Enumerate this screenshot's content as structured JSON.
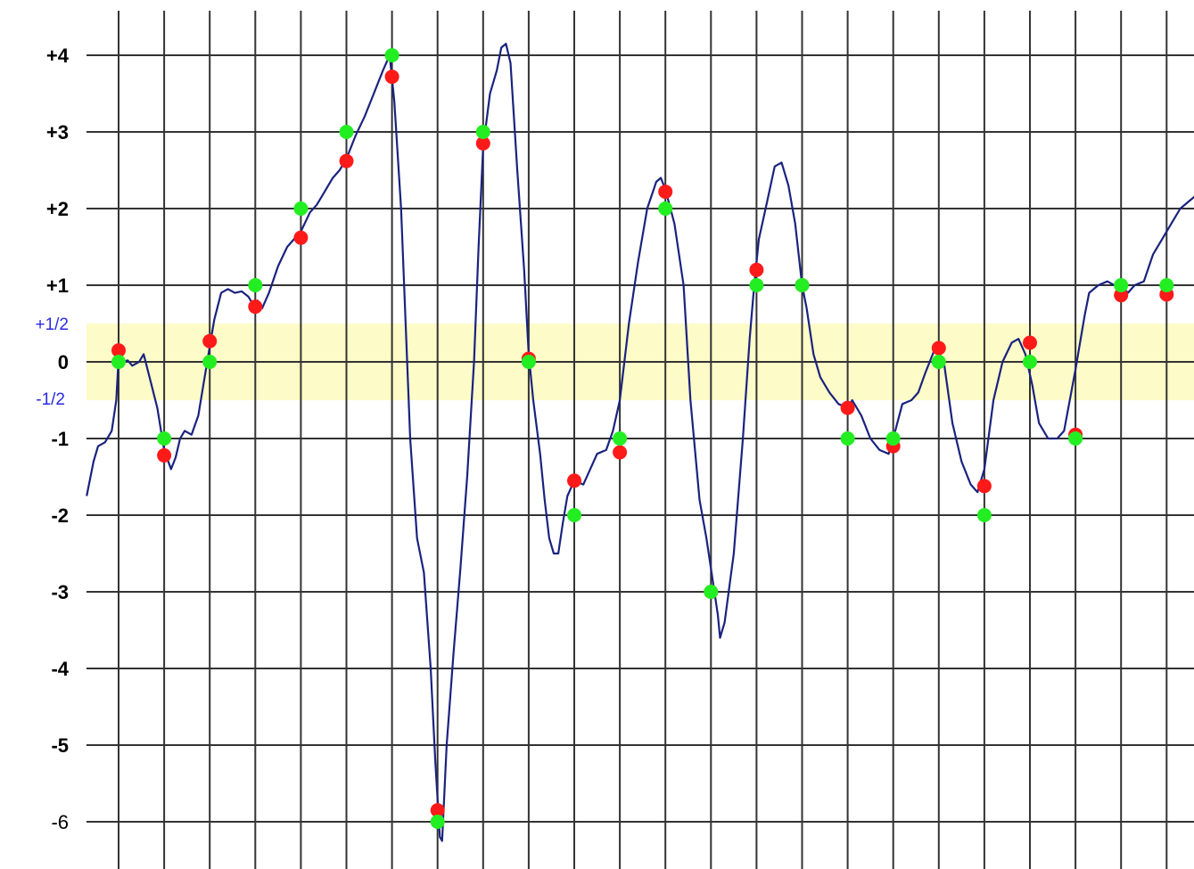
{
  "chart_data": {
    "type": "line",
    "title": "",
    "xlabel": "",
    "ylabel": "",
    "ylim": [
      -6.6,
      4.6
    ],
    "xlim": [
      -0.7,
      23.7
    ],
    "grid": true,
    "y_ticks": [
      {
        "value": 4,
        "label": "+4"
      },
      {
        "value": 3,
        "label": "+3"
      },
      {
        "value": 2,
        "label": "+2"
      },
      {
        "value": 1,
        "label": "+1"
      },
      {
        "value": 0,
        "label": "0"
      },
      {
        "value": -1,
        "label": "-1"
      },
      {
        "value": -2,
        "label": "-2"
      },
      {
        "value": -3,
        "label": "-3"
      },
      {
        "value": -4,
        "label": "-4"
      },
      {
        "value": -5,
        "label": "-5"
      },
      {
        "value": -6,
        "label": "-6"
      }
    ],
    "band": {
      "from": -0.5,
      "to": 0.5,
      "color": "#fdfbc8",
      "upper_label": "+1/2",
      "lower_label": "-1/2"
    },
    "colors": {
      "line": "#1a237e",
      "sample": "#ff1a1a",
      "quantized": "#22ee22",
      "grid": "#333333"
    },
    "vertical_gridlines": 24,
    "series": [
      {
        "kind": "continuous",
        "points": [
          [
            -0.7,
            -1.75
          ],
          [
            -0.55,
            -1.3
          ],
          [
            -0.45,
            -1.1
          ],
          [
            -0.3,
            -1.05
          ],
          [
            -0.15,
            -0.9
          ],
          [
            -0.05,
            -0.5
          ],
          [
            0,
            0.05
          ],
          [
            0.1,
            0.0
          ],
          [
            0.2,
            0.02
          ],
          [
            0.3,
            -0.05
          ],
          [
            0.45,
            0.0
          ],
          [
            0.55,
            0.1
          ],
          [
            0.7,
            -0.25
          ],
          [
            0.85,
            -0.6
          ],
          [
            1.0,
            -1.15
          ],
          [
            1.15,
            -1.4
          ],
          [
            1.25,
            -1.25
          ],
          [
            1.35,
            -1.0
          ],
          [
            1.45,
            -0.9
          ],
          [
            1.6,
            -0.95
          ],
          [
            1.75,
            -0.7
          ],
          [
            2.0,
            0.2
          ],
          [
            2.1,
            0.55
          ],
          [
            2.25,
            0.9
          ],
          [
            2.4,
            0.95
          ],
          [
            2.55,
            0.9
          ],
          [
            2.7,
            0.92
          ],
          [
            2.85,
            0.85
          ],
          [
            2.95,
            0.75
          ],
          [
            3.05,
            0.8
          ],
          [
            3.15,
            0.7
          ],
          [
            3.3,
            0.9
          ],
          [
            3.5,
            1.25
          ],
          [
            3.7,
            1.5
          ],
          [
            3.85,
            1.6
          ],
          [
            4.0,
            1.7
          ],
          [
            4.2,
            1.95
          ],
          [
            4.35,
            2.05
          ],
          [
            4.5,
            2.2
          ],
          [
            4.7,
            2.4
          ],
          [
            4.85,
            2.5
          ],
          [
            5.0,
            2.65
          ],
          [
            5.2,
            2.95
          ],
          [
            5.4,
            3.2
          ],
          [
            5.6,
            3.5
          ],
          [
            5.8,
            3.8
          ],
          [
            5.95,
            4.0
          ],
          [
            6.05,
            3.4
          ],
          [
            6.2,
            2.0
          ],
          [
            6.3,
            0.5
          ],
          [
            6.4,
            -1.0
          ],
          [
            6.55,
            -2.3
          ],
          [
            6.7,
            -2.75
          ],
          [
            6.85,
            -4.0
          ],
          [
            6.95,
            -5.2
          ],
          [
            7.05,
            -6.2
          ],
          [
            7.1,
            -6.25
          ],
          [
            7.2,
            -5.0
          ],
          [
            7.35,
            -3.8
          ],
          [
            7.5,
            -2.7
          ],
          [
            7.65,
            -1.5
          ],
          [
            7.8,
            0.0
          ],
          [
            7.9,
            1.5
          ],
          [
            8.0,
            2.8
          ],
          [
            8.15,
            3.5
          ],
          [
            8.3,
            3.8
          ],
          [
            8.4,
            4.1
          ],
          [
            8.5,
            4.15
          ],
          [
            8.6,
            3.9
          ],
          [
            8.75,
            2.5
          ],
          [
            8.9,
            1.2
          ],
          [
            9.0,
            0.1
          ],
          [
            9.1,
            -0.5
          ],
          [
            9.25,
            -1.2
          ],
          [
            9.35,
            -1.8
          ],
          [
            9.45,
            -2.3
          ],
          [
            9.55,
            -2.5
          ],
          [
            9.65,
            -2.5
          ],
          [
            9.75,
            -2.1
          ],
          [
            9.85,
            -1.75
          ],
          [
            10.0,
            -1.55
          ],
          [
            10.2,
            -1.6
          ],
          [
            10.35,
            -1.4
          ],
          [
            10.5,
            -1.2
          ],
          [
            10.7,
            -1.15
          ],
          [
            10.85,
            -0.9
          ],
          [
            11.0,
            -0.5
          ],
          [
            11.2,
            0.5
          ],
          [
            11.4,
            1.3
          ],
          [
            11.6,
            2.0
          ],
          [
            11.8,
            2.35
          ],
          [
            11.9,
            2.4
          ],
          [
            12.0,
            2.25
          ],
          [
            12.2,
            1.8
          ],
          [
            12.4,
            1.0
          ],
          [
            12.55,
            -0.5
          ],
          [
            12.75,
            -1.8
          ],
          [
            12.9,
            -2.3
          ],
          [
            13.05,
            -2.9
          ],
          [
            13.15,
            -3.3
          ],
          [
            13.2,
            -3.6
          ],
          [
            13.3,
            -3.4
          ],
          [
            13.5,
            -2.5
          ],
          [
            13.7,
            -1.0
          ],
          [
            13.85,
            0.3
          ],
          [
            13.95,
            1.0
          ],
          [
            14.05,
            1.6
          ],
          [
            14.2,
            2.0
          ],
          [
            14.4,
            2.55
          ],
          [
            14.55,
            2.6
          ],
          [
            14.7,
            2.3
          ],
          [
            14.85,
            1.8
          ],
          [
            15.0,
            1.0
          ],
          [
            15.1,
            0.7
          ],
          [
            15.25,
            0.1
          ],
          [
            15.4,
            -0.2
          ],
          [
            15.6,
            -0.4
          ],
          [
            15.8,
            -0.55
          ],
          [
            16.0,
            -0.6
          ],
          [
            16.1,
            -0.5
          ],
          [
            16.3,
            -0.7
          ],
          [
            16.5,
            -1.0
          ],
          [
            16.7,
            -1.15
          ],
          [
            16.9,
            -1.2
          ],
          [
            17.0,
            -1.0
          ],
          [
            17.2,
            -0.55
          ],
          [
            17.4,
            -0.5
          ],
          [
            17.55,
            -0.4
          ],
          [
            17.7,
            -0.15
          ],
          [
            17.9,
            0.15
          ],
          [
            18.1,
            0.05
          ],
          [
            18.3,
            -0.8
          ],
          [
            18.5,
            -1.3
          ],
          [
            18.7,
            -1.6
          ],
          [
            18.85,
            -1.7
          ],
          [
            19.0,
            -1.4
          ],
          [
            19.2,
            -0.5
          ],
          [
            19.4,
            0.0
          ],
          [
            19.6,
            0.25
          ],
          [
            19.75,
            0.3
          ],
          [
            19.9,
            0.1
          ],
          [
            20.05,
            -0.3
          ],
          [
            20.2,
            -0.8
          ],
          [
            20.4,
            -1.0
          ],
          [
            20.6,
            -1.0
          ],
          [
            20.75,
            -0.9
          ],
          [
            21.0,
            -0.1
          ],
          [
            21.2,
            0.6
          ],
          [
            21.3,
            0.9
          ],
          [
            21.5,
            1.0
          ],
          [
            21.7,
            1.05
          ],
          [
            21.85,
            1.0
          ],
          [
            22.0,
            1.0
          ],
          [
            22.15,
            0.9
          ],
          [
            22.3,
            1.0
          ],
          [
            22.5,
            1.05
          ],
          [
            22.7,
            1.4
          ],
          [
            22.9,
            1.6
          ],
          [
            23.1,
            1.8
          ],
          [
            23.3,
            2.0
          ],
          [
            23.5,
            2.1
          ],
          [
            23.7,
            2.2
          ]
        ]
      },
      {
        "kind": "samples",
        "x": [
          0,
          1,
          2,
          3,
          4,
          5,
          6,
          7,
          8,
          9,
          10,
          11,
          12,
          13,
          14,
          15,
          16,
          17,
          18,
          19,
          20,
          21,
          22,
          23
        ],
        "values": [
          0.15,
          -1.22,
          0.27,
          0.72,
          1.62,
          2.62,
          3.72,
          -5.85,
          2.85,
          0.04,
          -1.55,
          -1.18,
          2.22,
          -3.0,
          1.2,
          1.0,
          -0.6,
          -1.1,
          0.18,
          -1.62,
          0.25,
          -0.95,
          0.87,
          0.88
        ]
      },
      {
        "kind": "quantized",
        "x": [
          0,
          1,
          2,
          3,
          4,
          5,
          6,
          7,
          8,
          9,
          10,
          11,
          12,
          13,
          14,
          15,
          16,
          17,
          18,
          19,
          20,
          21,
          22,
          23
        ],
        "values": [
          0,
          -1,
          0,
          1,
          2,
          3,
          4,
          -6,
          3,
          0,
          -2,
          -1,
          2,
          -3,
          1,
          1,
          -1,
          -1,
          0,
          -2,
          0,
          -1,
          1,
          1
        ]
      }
    ]
  }
}
